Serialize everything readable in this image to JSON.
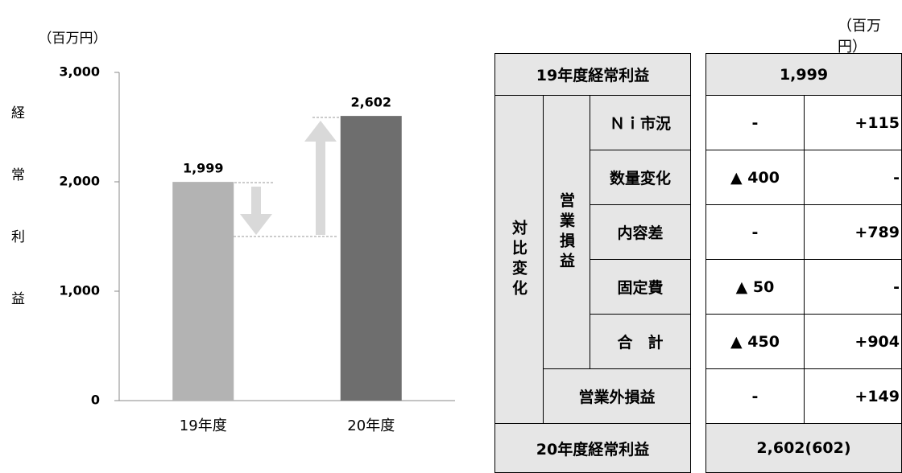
{
  "chart_data": {
    "type": "bar",
    "unit": "（百万円）",
    "ylabel": "経常利益",
    "categories": [
      "19年度",
      "20年度"
    ],
    "values": [
      1999,
      2602
    ],
    "value_labels": [
      "1,999",
      "2,602"
    ],
    "colors": [
      "#b3b3b3",
      "#6e6e6e"
    ],
    "ylim": [
      0,
      3000
    ],
    "yticks": [
      0,
      {
        "value": 1000,
        "label": "1,000"
      },
      {
        "value": 2000,
        "label": "2,000"
      },
      {
        "value": 3000,
        "label": "3,000"
      }
    ],
    "grid": false
  },
  "table": {
    "unit": "（百万円）",
    "header": {
      "label": "19年度経常利益",
      "value": "1,999"
    },
    "group": "対比変化",
    "subgroup": "営業損益",
    "rows": [
      {
        "label": "Ｎｉ市況",
        "minus": "-",
        "plus": "+115"
      },
      {
        "label": "数量変化",
        "minus": "▲ 400",
        "plus": "-"
      },
      {
        "label": "内容差",
        "minus": "-",
        "plus": "+789"
      },
      {
        "label": "固定費",
        "minus": "▲ 50",
        "plus": "-"
      },
      {
        "label": "合　計",
        "minus": "▲ 450",
        "plus": "+904"
      }
    ],
    "other": {
      "label": "営業外損益",
      "minus": "-",
      "plus": "+149"
    },
    "footer": {
      "label": "20年度経常利益",
      "value": "2,602(602)"
    }
  }
}
